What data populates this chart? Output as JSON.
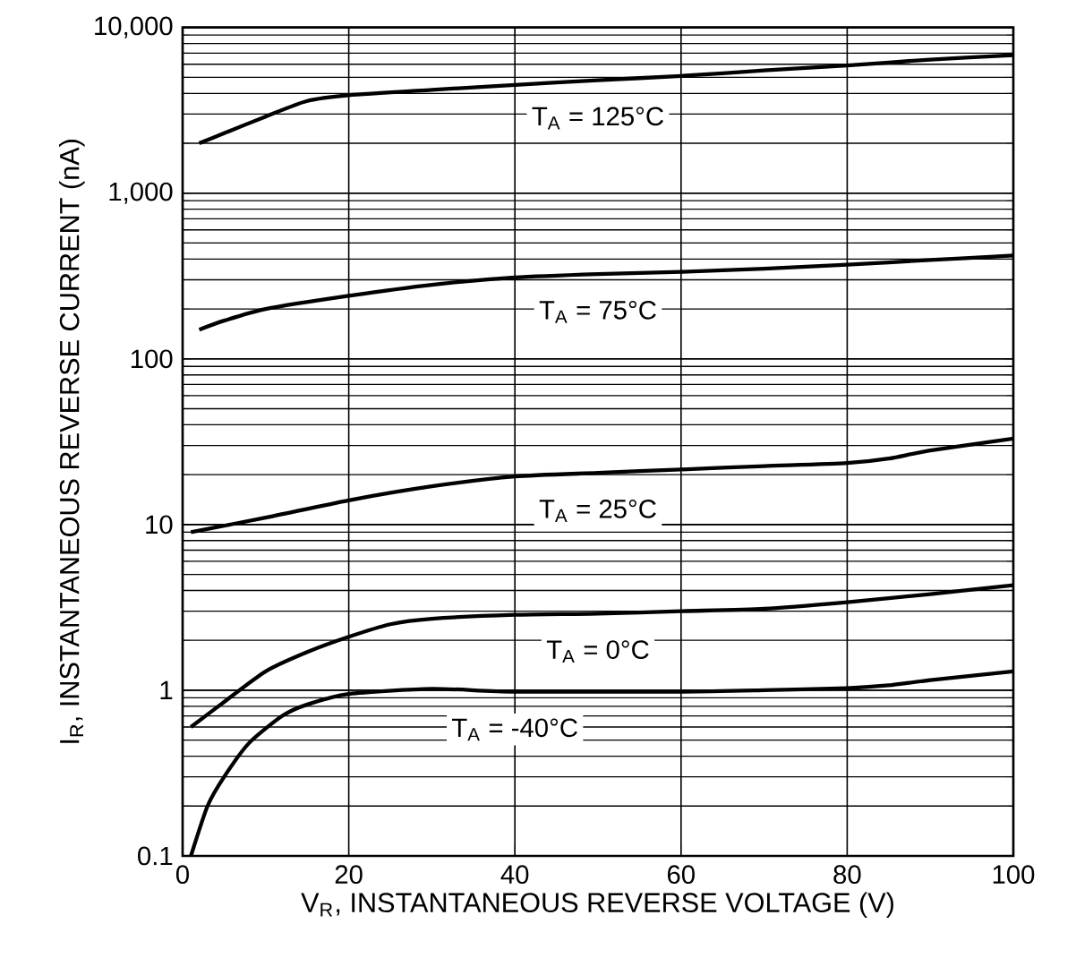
{
  "chart_data": {
    "type": "line",
    "xlabel": "V$_{R}$, INSTANTANEOUS REVERSE VOLTAGE (V)",
    "ylabel": "I$_{R}$, INSTANTANEOUS REVERSE CURRENT (nA)",
    "log": "y",
    "grid": true,
    "legend": false,
    "marker": "none",
    "line_style": "solid",
    "xlim": [
      0,
      100
    ],
    "xticks": [
      0,
      20,
      40,
      60,
      80,
      100
    ],
    "ylim": [
      0.1,
      10000
    ],
    "yticks": [
      0.1,
      1,
      10,
      100,
      {
        "value": 1000,
        "label": "1,000"
      },
      {
        "value": 10000,
        "label": "10,000"
      }
    ],
    "series": [
      {
        "name": "T$_{A}$ = 125°C",
        "color": "#000000",
        "x": [
          2,
          5,
          10,
          15,
          20,
          30,
          40,
          50,
          60,
          70,
          80,
          90,
          100
        ],
        "values": [
          2000,
          2300,
          2900,
          3600,
          3900,
          4200,
          4500,
          4800,
          5100,
          5500,
          5900,
          6400,
          6800
        ]
      },
      {
        "name": "T$_{A}$ = 75°C",
        "color": "#000000",
        "x": [
          2,
          5,
          10,
          20,
          30,
          40,
          50,
          60,
          70,
          80,
          90,
          100
        ],
        "values": [
          150,
          170,
          200,
          240,
          280,
          310,
          325,
          335,
          350,
          370,
          395,
          420
        ]
      },
      {
        "name": "T$_{A}$ = 25°C",
        "color": "#000000",
        "x": [
          1,
          10,
          20,
          30,
          40,
          50,
          60,
          70,
          80,
          85,
          90,
          100
        ],
        "values": [
          9,
          11,
          14,
          17,
          19.5,
          20.5,
          21.5,
          22.5,
          23.5,
          25,
          28,
          33
        ]
      },
      {
        "name": "T$_{A}$ = 0°C",
        "color": "#000000",
        "x": [
          1,
          5,
          10,
          15,
          20,
          25,
          30,
          40,
          50,
          60,
          70,
          80,
          90,
          100
        ],
        "values": [
          0.6,
          0.85,
          1.3,
          1.7,
          2.1,
          2.5,
          2.7,
          2.85,
          2.9,
          3.0,
          3.1,
          3.4,
          3.8,
          4.3
        ]
      },
      {
        "name": "T$_{A}$ = -40°C",
        "color": "#000000",
        "x": [
          1,
          3,
          5,
          8,
          12,
          15,
          20,
          30,
          40,
          60,
          70,
          80,
          85,
          90,
          100
        ],
        "values": [
          0.1,
          0.2,
          0.3,
          0.48,
          0.7,
          0.82,
          0.95,
          1.02,
          0.98,
          0.98,
          1.0,
          1.03,
          1.07,
          1.15,
          1.3
        ]
      }
    ]
  }
}
